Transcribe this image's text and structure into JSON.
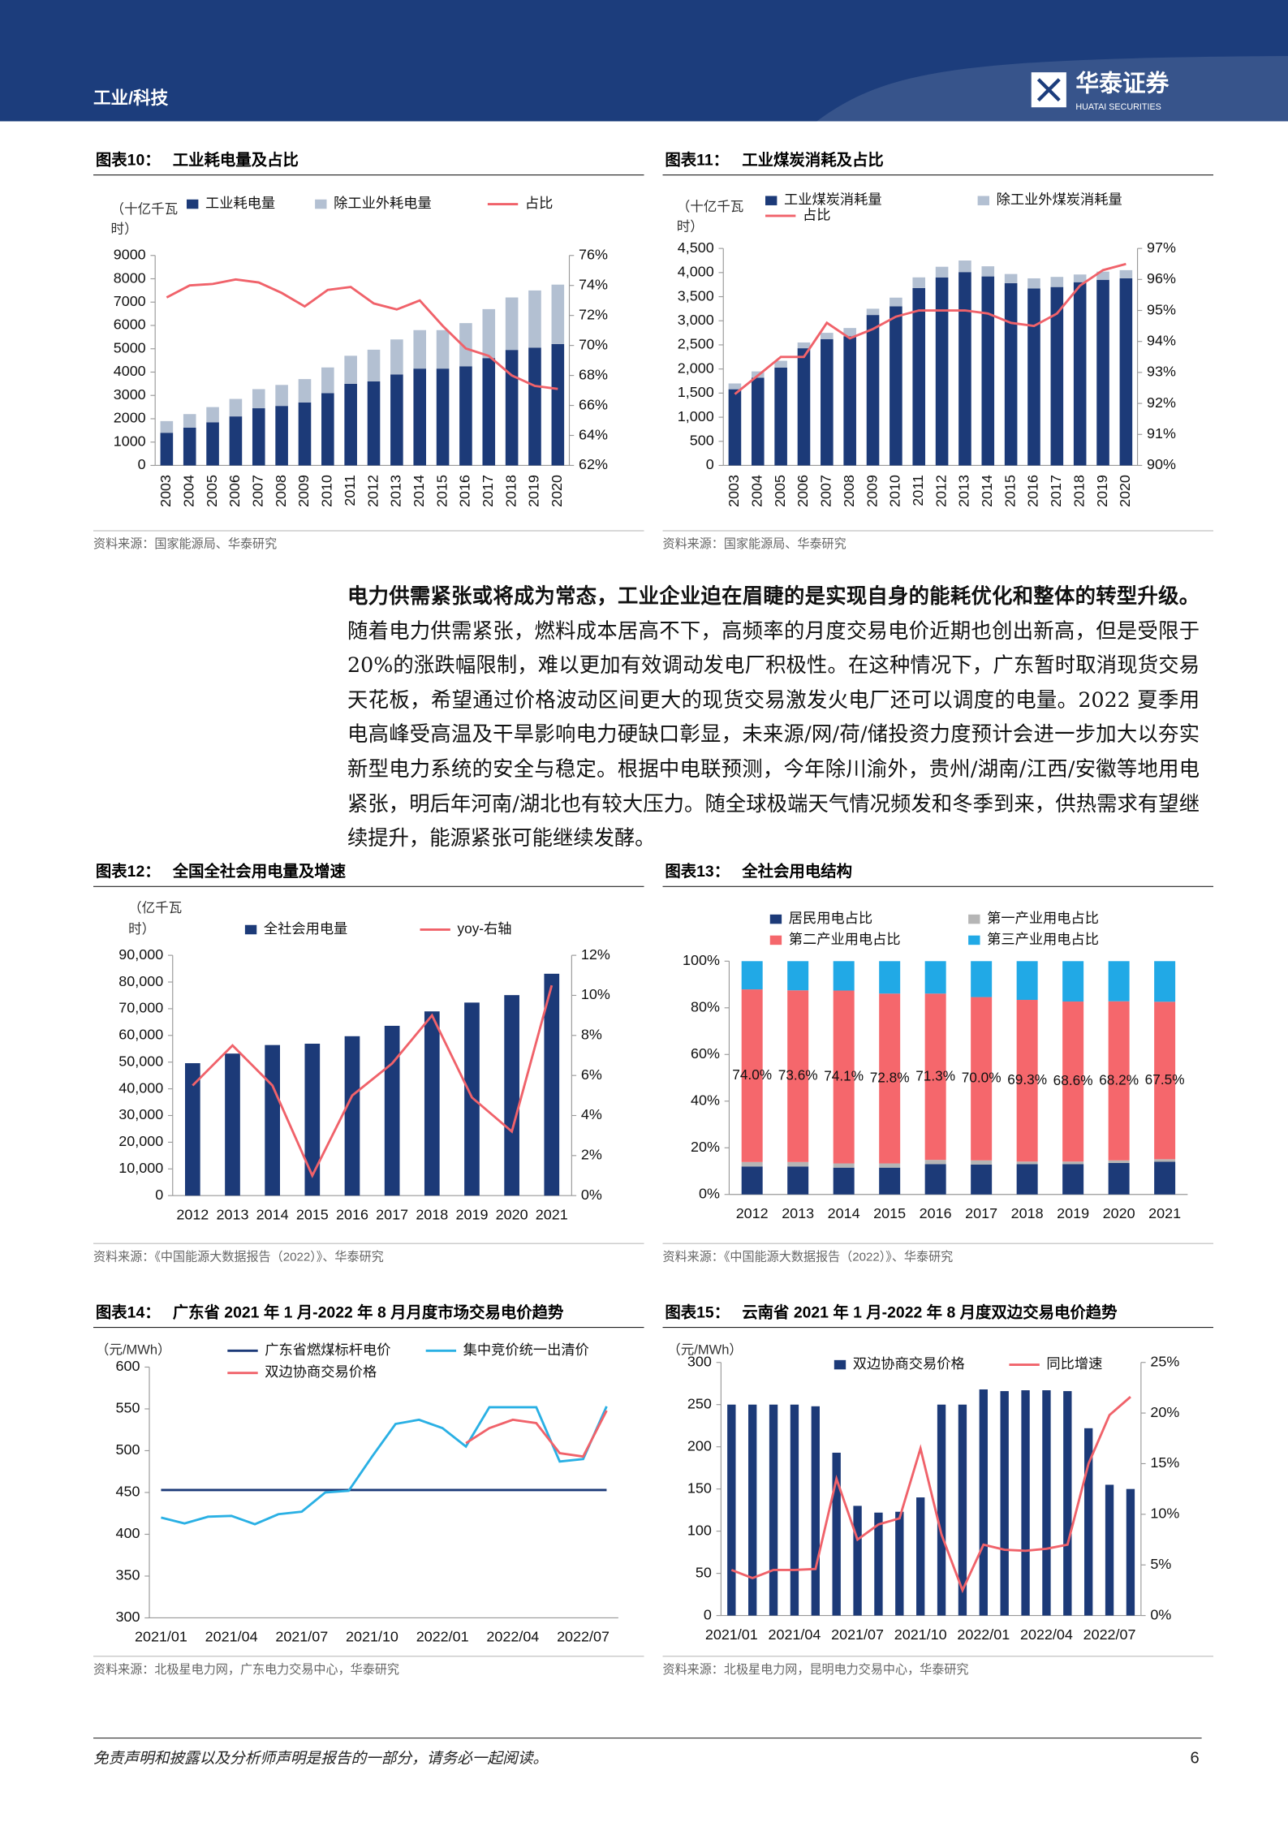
{
  "header": {
    "section": "工业/科技",
    "brand": "华泰证券",
    "brand_en": "HUATAI SECURITIES"
  },
  "paragraph": {
    "lead": "电力供需紧张或将成为常态，工业企业迫在眉睫的是实现自身的能耗优化和整体的转型升级。",
    "text": "随着电力供需紧张，燃料成本居高不下，高频率的月度交易电价近期也创出新高，但是受限于 20%的涨跌幅限制，难以更加有效调动发电厂积极性。在这种情况下，广东暂时取消现货交易天花板，希望通过价格波动区间更大的现货交易激发火电厂还可以调度的电量。2022 夏季用电高峰受高温及干旱影响电力硬缺口彰显，未来源/网/荷/储投资力度预计会进一步加大以夯实新型电力系统的安全与稳定。根据中电联预测，今年除川渝外，贵州/湖南/江西/安徽等地用电紧张，明后年河南/湖北也有较大压力。随全球极端天气情况频发和冬季到来，供热需求有望继续提升，能源紧张可能继续发酵。"
  },
  "footer": {
    "disclaimer": "免责声明和披露以及分析师声明是报告的一部分，请务必一起阅读。",
    "page": "6"
  },
  "chart_data": [
    {
      "type": "bar",
      "label": "图表10：",
      "title": "工业耗电量及占比",
      "ylabel": [
        "（十亿千瓦",
        "时）"
      ],
      "stacked": true,
      "source": "资料来源：国家能源局、华泰研究",
      "categories": [
        "2003",
        "2004",
        "2005",
        "2006",
        "2007",
        "2008",
        "2009",
        "2010",
        "2011",
        "2012",
        "2013",
        "2014",
        "2015",
        "2016",
        "2017",
        "2018",
        "2019",
        "2020"
      ],
      "series": [
        {
          "name": "工业耗电量",
          "type": "bar",
          "color": "#1c3a78",
          "values": [
            1400,
            1620,
            1850,
            2100,
            2450,
            2550,
            2700,
            3100,
            3500,
            3600,
            3900,
            4150,
            4150,
            4250,
            4600,
            4950,
            5050,
            5200
          ]
        },
        {
          "name": "除工业外耗电量",
          "type": "bar",
          "color": "#b3c0d2",
          "values": [
            500,
            580,
            650,
            750,
            820,
            900,
            1000,
            1100,
            1200,
            1360,
            1500,
            1650,
            1650,
            1850,
            2100,
            2250,
            2450,
            2550
          ]
        },
        {
          "name": "占比",
          "type": "line",
          "axis": "y2",
          "color": "#f0626a",
          "values": [
            73.2,
            74.0,
            74.1,
            74.4,
            74.2,
            73.5,
            72.6,
            73.7,
            73.9,
            72.8,
            72.4,
            73.0,
            71.3,
            69.8,
            69.3,
            68.0,
            67.3,
            67.1
          ]
        }
      ],
      "ylim": [
        0,
        9000
      ],
      "yticks": [
        0,
        1000,
        2000,
        3000,
        4000,
        5000,
        6000,
        7000,
        8000,
        9000
      ],
      "y2lim": [
        62,
        76
      ],
      "y2ticks": [
        {
          "value": 62,
          "label": "62%"
        },
        {
          "value": 64,
          "label": "64%"
        },
        {
          "value": 66,
          "label": "66%"
        },
        {
          "value": 68,
          "label": "68%"
        },
        {
          "value": 70,
          "label": "70%"
        },
        {
          "value": 72,
          "label": "72%"
        },
        {
          "value": 74,
          "label": "74%"
        },
        {
          "value": 76,
          "label": "76%"
        }
      ]
    },
    {
      "type": "bar",
      "label": "图表11：",
      "title": "工业煤炭消耗及占比",
      "ylabel": [
        "（十亿千瓦",
        "时）"
      ],
      "stacked": true,
      "source": "资料来源：国家能源局、华泰研究",
      "categories": [
        "2003",
        "2004",
        "2005",
        "2006",
        "2007",
        "2008",
        "2009",
        "2010",
        "2011",
        "2012",
        "2013",
        "2014",
        "2015",
        "2016",
        "2017",
        "2018",
        "2019",
        "2020"
      ],
      "series": [
        {
          "name": "工业煤炭消耗量",
          "type": "bar",
          "color": "#1c3a78",
          "values": [
            1580,
            1820,
            2030,
            2430,
            2620,
            2680,
            3120,
            3300,
            3680,
            3900,
            4010,
            3920,
            3780,
            3670,
            3700,
            3800,
            3850,
            3880
          ]
        },
        {
          "name": "除工业外煤炭消耗量",
          "type": "bar",
          "color": "#b3c0d2",
          "values": [
            120,
            130,
            140,
            120,
            130,
            170,
            130,
            180,
            220,
            220,
            240,
            210,
            190,
            210,
            210,
            160,
            170,
            170
          ]
        },
        {
          "name": "占比",
          "type": "line",
          "axis": "y2",
          "color": "#f0626a",
          "values": [
            92.3,
            92.9,
            93.5,
            93.5,
            94.6,
            94.1,
            94.4,
            94.8,
            95.0,
            95.0,
            95.0,
            94.9,
            94.6,
            94.5,
            94.9,
            95.8,
            96.3,
            96.5
          ]
        }
      ],
      "ylim": [
        0,
        4500
      ],
      "yticks": [
        0,
        500,
        {
          "value": 1000,
          "label": "1,000"
        },
        {
          "value": 1500,
          "label": "1,500"
        },
        {
          "value": 2000,
          "label": "2,000"
        },
        {
          "value": 2500,
          "label": "2,500"
        },
        {
          "value": 3000,
          "label": "3,000"
        },
        {
          "value": 3500,
          "label": "3,500"
        },
        {
          "value": 4000,
          "label": "4,000"
        },
        {
          "value": 4500,
          "label": "4,500"
        }
      ],
      "y2lim": [
        90,
        97
      ],
      "y2ticks": [
        {
          "value": 90,
          "label": "90%"
        },
        {
          "value": 91,
          "label": "91%"
        },
        {
          "value": 92,
          "label": "92%"
        },
        {
          "value": 93,
          "label": "93%"
        },
        {
          "value": 94,
          "label": "94%"
        },
        {
          "value": 95,
          "label": "95%"
        },
        {
          "value": 96,
          "label": "96%"
        },
        {
          "value": 97,
          "label": "97%"
        }
      ]
    },
    {
      "type": "bar",
      "label": "图表12：",
      "title": "全国全社会用电量及增速",
      "ylabel": [
        "（亿千瓦",
        "时）"
      ],
      "source": "资料来源：《中国能源大数据报告（2022）》、华泰研究",
      "categories": [
        "2012",
        "2013",
        "2014",
        "2015",
        "2016",
        "2017",
        "2018",
        "2019",
        "2020",
        "2021"
      ],
      "series": [
        {
          "name": "全社会用电量",
          "type": "bar",
          "color": "#1c3a78",
          "values": [
            49600,
            53200,
            56400,
            56900,
            59700,
            63600,
            69000,
            72300,
            75100,
            83100
          ]
        },
        {
          "name": "yoy-右轴",
          "type": "line",
          "axis": "y2",
          "color": "#f0626a",
          "values": [
            5.5,
            7.5,
            5.5,
            1.0,
            5.0,
            6.6,
            9.0,
            4.9,
            3.2,
            10.5
          ]
        }
      ],
      "ylim": [
        0,
        90000
      ],
      "yticks": [
        0,
        {
          "value": 10000,
          "label": "10,000"
        },
        {
          "value": 20000,
          "label": "20,000"
        },
        {
          "value": 30000,
          "label": "30,000"
        },
        {
          "value": 40000,
          "label": "40,000"
        },
        {
          "value": 50000,
          "label": "50,000"
        },
        {
          "value": 60000,
          "label": "60,000"
        },
        {
          "value": 70000,
          "label": "70,000"
        },
        {
          "value": 80000,
          "label": "80,000"
        },
        {
          "value": 90000,
          "label": "90,000"
        }
      ],
      "y2lim": [
        0,
        12
      ],
      "y2ticks": [
        {
          "value": 0,
          "label": "0%"
        },
        {
          "value": 2,
          "label": "2%"
        },
        {
          "value": 4,
          "label": "4%"
        },
        {
          "value": 6,
          "label": "6%"
        },
        {
          "value": 8,
          "label": "8%"
        },
        {
          "value": 10,
          "label": "10%"
        },
        {
          "value": 12,
          "label": "12%"
        }
      ]
    },
    {
      "type": "bar",
      "label": "图表13：",
      "title": "全社会用电结构",
      "stacked": true,
      "source": "资料来源：《中国能源大数据报告（2022）》、华泰研究",
      "categories": [
        "2012",
        "2013",
        "2014",
        "2015",
        "2016",
        "2017",
        "2018",
        "2019",
        "2020",
        "2021"
      ],
      "series": [
        {
          "name": "居民用电占比",
          "type": "bar",
          "color": "#1c3a78",
          "values": [
            12.0,
            12.0,
            11.5,
            11.5,
            13.0,
            12.8,
            13.0,
            13.0,
            13.5,
            14.0
          ]
        },
        {
          "name": "第一产业用电占比",
          "type": "bar",
          "color": "#b5b5b5",
          "values": [
            1.9,
            1.9,
            1.8,
            1.8,
            1.8,
            1.8,
            1.1,
            1.1,
            1.1,
            1.1
          ]
        },
        {
          "name": "第二产业用电占比",
          "type": "bar",
          "color": "#f5676c",
          "values": [
            74.0,
            73.6,
            74.1,
            72.8,
            71.3,
            70.0,
            69.3,
            68.6,
            68.2,
            67.5
          ],
          "value_labels": [
            "74.0%",
            "73.6%",
            "74.1%",
            "72.8%",
            "71.3%",
            "70.0%",
            "69.3%",
            "68.6%",
            "68.2%",
            "67.5%"
          ]
        },
        {
          "name": "第三产业用电占比",
          "type": "bar",
          "color": "#21a9e6",
          "values": [
            12.1,
            12.5,
            12.6,
            13.9,
            13.9,
            15.4,
            16.6,
            17.3,
            17.2,
            17.4
          ]
        }
      ],
      "ylim": [
        0,
        100
      ],
      "yticks": [
        {
          "value": 0,
          "label": "0%"
        },
        {
          "value": 20,
          "label": "20%"
        },
        {
          "value": 40,
          "label": "40%"
        },
        {
          "value": 60,
          "label": "60%"
        },
        {
          "value": 80,
          "label": "80%"
        },
        {
          "value": 100,
          "label": "100%"
        }
      ]
    },
    {
      "type": "line",
      "label": "图表14：",
      "title": "广东省 2021 年 1 月-2022 年 8 月月度市场交易电价趋势",
      "ylabel": [
        "（元/MWh）"
      ],
      "source": "资料来源：北极星电力网，广东电力交易中心，华泰研究",
      "categories": [
        "2021/01",
        null,
        null,
        "2021/04",
        null,
        null,
        "2021/07",
        null,
        null,
        "2021/10",
        null,
        null,
        "2022/01",
        null,
        null,
        "2022/04",
        null,
        null,
        "2022/07",
        null
      ],
      "series": [
        {
          "name": "广东省燃煤标杆电价",
          "type": "line",
          "color": "#1c3a78",
          "values": [
            453,
            453,
            453,
            453,
            453,
            453,
            453,
            453,
            453,
            453,
            453,
            453,
            453,
            453,
            453,
            453,
            453,
            453,
            453,
            453
          ]
        },
        {
          "name": "集中竞价统一出清价",
          "type": "line",
          "color": "#2ab0e4",
          "values": [
            420,
            413,
            421,
            422,
            412,
            424,
            427,
            450,
            452,
            493,
            532,
            537,
            527,
            505,
            552,
            552,
            552,
            487,
            490,
            553
          ]
        },
        {
          "name": "双边协商交易价格",
          "type": "line",
          "color": "#f0626a",
          "values": [
            null,
            null,
            null,
            null,
            null,
            null,
            null,
            null,
            null,
            null,
            null,
            null,
            null,
            509,
            527,
            537,
            533,
            497,
            493,
            548
          ]
        }
      ],
      "ylim": [
        300,
        600
      ],
      "yticks": [
        300,
        350,
        400,
        450,
        500,
        550,
        600
      ]
    },
    {
      "type": "bar",
      "label": "图表15：",
      "title": "云南省 2021 年 1 月-2022 年 8 月度双边交易电价趋势",
      "ylabel": [
        "（元/MWh）"
      ],
      "source": "资料来源：北极星电力网，昆明电力交易中心，华泰研究",
      "categories": [
        "2021/01",
        null,
        null,
        "2021/04",
        null,
        null,
        "2021/07",
        null,
        null,
        "2021/10",
        null,
        null,
        "2022/01",
        null,
        null,
        "2022/04",
        null,
        null,
        "2022/07",
        null
      ],
      "series": [
        {
          "name": "双边协商交易价格",
          "type": "bar",
          "color": "#1c3a78",
          "values": [
            250,
            250,
            250,
            250,
            248,
            193,
            130,
            122,
            123,
            140,
            250,
            250,
            268,
            266,
            267,
            267,
            266,
            222,
            155,
            150
          ]
        },
        {
          "name": "同比增速",
          "type": "line",
          "axis": "y2",
          "color": "#f0626a",
          "values": [
            4.5,
            3.7,
            4.5,
            4.5,
            4.6,
            13.5,
            7.5,
            9.0,
            9.6,
            16.5,
            8.0,
            2.5,
            7.0,
            6.5,
            6.4,
            6.6,
            7.0,
            15.0,
            19.8,
            21.6
          ]
        }
      ],
      "ylim": [
        0,
        300
      ],
      "yticks": [
        0,
        50,
        100,
        150,
        200,
        250,
        300
      ],
      "y2lim": [
        0,
        25
      ],
      "y2ticks": [
        {
          "value": 0,
          "label": "0%"
        },
        {
          "value": 5,
          "label": "5%"
        },
        {
          "value": 10,
          "label": "10%"
        },
        {
          "value": 15,
          "label": "15%"
        },
        {
          "value": 20,
          "label": "20%"
        },
        {
          "value": 25,
          "label": "25%"
        }
      ]
    }
  ]
}
